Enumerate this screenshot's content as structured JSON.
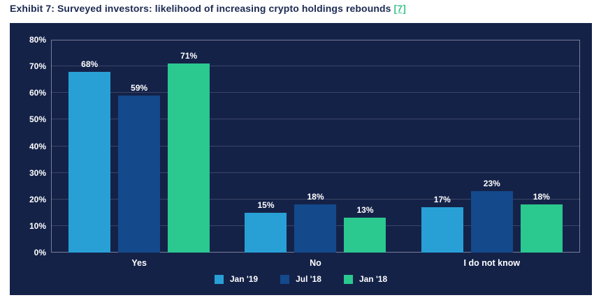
{
  "page": {
    "title": "Exhibit 7: Surveyed investors: likelihood of increasing crypto holdings rebounds",
    "reference_link": "[7]"
  },
  "colors": {
    "title_text": "#1c2b53",
    "link": "#3fc78f",
    "panel_bg": "#152248",
    "plot_border": "rgba(255,255,255,0.42)",
    "grid_line": "rgba(255,255,255,0.16)",
    "light_text": "#ffffff"
  },
  "chart_data": {
    "type": "bar",
    "title": "Surveyed investors: likelihood of increasing crypto holdings rebounds",
    "categories": [
      "Yes",
      "No",
      "I do not know"
    ],
    "series": [
      {
        "name": "Jan '19",
        "color": "#28a0d6",
        "values": [
          68,
          15,
          17
        ]
      },
      {
        "name": "Jul '18",
        "color": "#14498c",
        "values": [
          59,
          18,
          23
        ]
      },
      {
        "name": "Jan '18",
        "color": "#2bc890",
        "values": [
          71,
          13,
          18
        ]
      }
    ],
    "value_suffix": "%",
    "xlabel": "",
    "ylabel": "",
    "ylim": [
      0,
      80
    ],
    "ytick_step": 10,
    "ytick_suffix": "%",
    "grid": true,
    "legend_position": "bottom"
  }
}
